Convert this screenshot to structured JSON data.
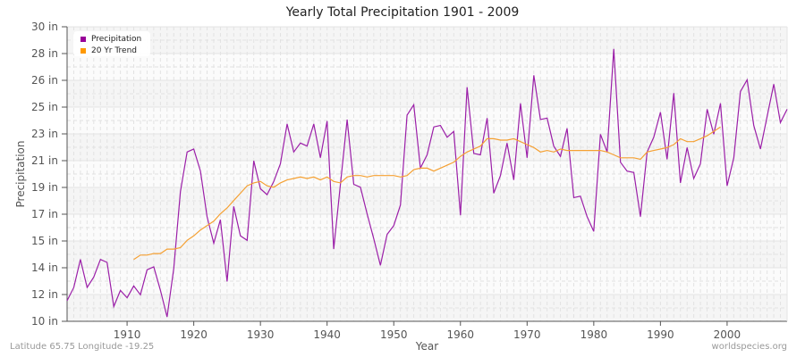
{
  "title": "Yearly Total Precipitation 1901 - 2009",
  "footer": {
    "location": "Latitude 65.75 Longitude -19.25",
    "source": "worldspecies.org"
  },
  "legend": {
    "items": [
      {
        "label": "Precipitation",
        "color": "#990099"
      },
      {
        "label": "20 Yr Trend",
        "color": "#ff9900"
      }
    ]
  },
  "axes": {
    "xlabel": "Year",
    "ylabel": "Precipitation",
    "y_ticks": [
      "10 in",
      "12 in",
      "14 in",
      "15 in",
      "17 in",
      "19 in",
      "21 in",
      "23 in",
      "25 in",
      "26 in",
      "28 in",
      "30 in"
    ],
    "x_ticks": [
      "1910",
      "1920",
      "1930",
      "1940",
      "1950",
      "1960",
      "1970",
      "1980",
      "1990",
      "2000"
    ]
  },
  "colors": {
    "precipitation": "#9b1fa8",
    "trend": "#f5a032",
    "plot_band_light": "#f5f5f5",
    "plot_band_white": "#fbfbfb",
    "grid": "#e2e2e2"
  },
  "chart_data": {
    "type": "line",
    "title": "Yearly Total Precipitation 1901 - 2009",
    "xlabel": "Year",
    "ylabel": "Precipitation",
    "ylim": [
      10,
      30
    ],
    "xlim": [
      1901,
      2009
    ],
    "y_unit": "in",
    "grid": true,
    "legend_position": "top-left",
    "x": [
      1901,
      1902,
      1903,
      1904,
      1905,
      1906,
      1907,
      1908,
      1909,
      1910,
      1911,
      1912,
      1913,
      1914,
      1915,
      1916,
      1917,
      1918,
      1919,
      1920,
      1921,
      1922,
      1923,
      1924,
      1925,
      1926,
      1927,
      1928,
      1929,
      1930,
      1931,
      1932,
      1933,
      1934,
      1935,
      1936,
      1937,
      1938,
      1939,
      1940,
      1941,
      1942,
      1943,
      1944,
      1945,
      1946,
      1947,
      1948,
      1949,
      1950,
      1951,
      1952,
      1953,
      1954,
      1955,
      1956,
      1957,
      1958,
      1959,
      1960,
      1961,
      1962,
      1963,
      1964,
      1965,
      1966,
      1967,
      1968,
      1969,
      1970,
      1971,
      1972,
      1973,
      1974,
      1975,
      1976,
      1977,
      1978,
      1979,
      1980,
      1981,
      1982,
      1983,
      1984,
      1985,
      1986,
      1987,
      1988,
      1989,
      1990,
      1991,
      1992,
      1993,
      1994,
      1995,
      1996,
      1997,
      1998,
      1999,
      2000,
      2001,
      2002,
      2003,
      2004,
      2005,
      2006,
      2007,
      2008,
      2009
    ],
    "series": [
      {
        "name": "Precipitation",
        "color": "#990099",
        "values": [
          11.4,
          12.3,
          14.2,
          12.3,
          13.0,
          14.2,
          14.0,
          11.0,
          12.1,
          11.6,
          12.4,
          11.8,
          13.5,
          13.7,
          12.1,
          10.3,
          13.6,
          18.8,
          21.5,
          21.7,
          20.2,
          17.1,
          15.3,
          16.9,
          12.7,
          17.8,
          15.8,
          15.5,
          20.9,
          19.0,
          18.6,
          19.5,
          20.7,
          23.4,
          21.5,
          22.1,
          21.9,
          23.4,
          21.1,
          23.6,
          14.9,
          19.3,
          23.7,
          19.3,
          19.1,
          17.3,
          15.6,
          13.8,
          15.9,
          16.5,
          17.9,
          24.0,
          24.7,
          20.4,
          21.3,
          23.2,
          23.3,
          22.5,
          22.9,
          17.2,
          25.9,
          21.4,
          21.3,
          23.8,
          18.7,
          19.9,
          22.1,
          19.6,
          24.8,
          21.1,
          26.7,
          23.7,
          23.8,
          21.9,
          21.2,
          23.1,
          18.4,
          18.5,
          17.1,
          16.1,
          22.7,
          21.5,
          28.5,
          20.8,
          20.2,
          20.1,
          17.1,
          21.5,
          22.5,
          24.2,
          21.0,
          25.5,
          19.4,
          21.8,
          19.7,
          20.7,
          24.4,
          22.7,
          24.8,
          19.2,
          21.1,
          25.6,
          26.4,
          23.3,
          21.7,
          23.9,
          26.1,
          23.5,
          24.4
        ]
      },
      {
        "name": "20 Yr Trend",
        "color": "#ff9900",
        "start_year": 1911,
        "values": [
          14.2,
          14.5,
          14.5,
          14.6,
          14.6,
          14.9,
          14.9,
          15.0,
          15.5,
          15.8,
          16.2,
          16.5,
          16.8,
          17.3,
          17.7,
          18.2,
          18.7,
          19.2,
          19.4,
          19.5,
          19.2,
          19.1,
          19.4,
          19.6,
          19.7,
          19.8,
          19.7,
          19.8,
          19.6,
          19.8,
          19.5,
          19.4,
          19.8,
          19.9,
          19.9,
          19.8,
          19.9,
          19.9,
          19.9,
          19.9,
          19.8,
          19.9,
          20.3,
          20.4,
          20.4,
          20.2,
          20.4,
          20.6,
          20.8,
          21.2,
          21.5,
          21.7,
          21.9,
          22.4,
          22.4,
          22.3,
          22.3,
          22.4,
          22.2,
          22.0,
          21.8,
          21.5,
          21.6,
          21.5,
          21.7,
          21.6,
          21.6,
          21.6,
          21.6,
          21.6,
          21.6,
          21.5,
          21.3,
          21.1,
          21.1,
          21.1,
          21.0,
          21.5,
          21.6,
          21.7,
          21.8,
          22.0,
          22.4,
          22.2,
          22.2,
          22.4,
          22.6,
          22.9,
          23.2
        ]
      }
    ]
  }
}
